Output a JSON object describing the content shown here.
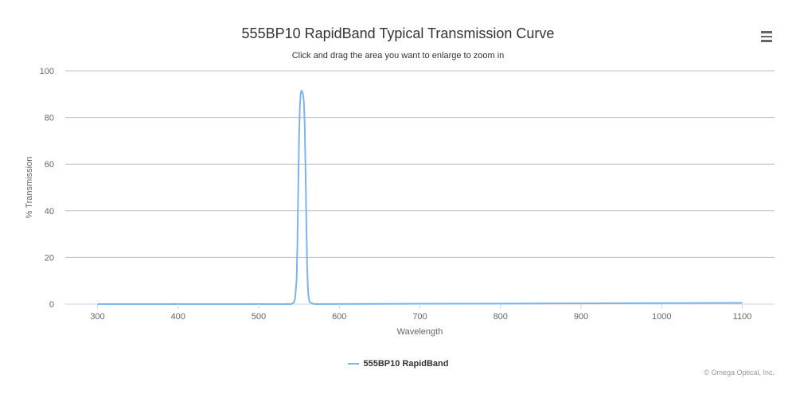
{
  "colors": {
    "series": "#7cb5ec",
    "grid": "#c0c0c0",
    "axis_line": "#ccd6eb",
    "text": "#333333",
    "muted": "#666666"
  },
  "menu": {
    "icon": "hamburger-menu-icon"
  },
  "credits": "© Omega Optical, Inc.",
  "chart_data": {
    "type": "line",
    "title": "555BP10 RapidBand Typical Transmission Curve",
    "subtitle": "Click and drag the area you want to enlarge to zoom in",
    "xlabel": "Wavelength",
    "ylabel": "% Transmission",
    "xlim": [
      260,
      1140
    ],
    "ylim": [
      0,
      100
    ],
    "xticks": [
      300,
      400,
      500,
      600,
      700,
      800,
      900,
      1000,
      1100
    ],
    "yticks": [
      0,
      20,
      40,
      60,
      80,
      100
    ],
    "grid": true,
    "legend": "bottom-center",
    "series": [
      {
        "name": "555BP10 RapidBand",
        "x": [
          300,
          540,
          543,
          545,
          547,
          548,
          549,
          550,
          551,
          552,
          553,
          554,
          555,
          556,
          557,
          558,
          559,
          560,
          561,
          562,
          563,
          565,
          567,
          570,
          880,
          1100
        ],
        "y": [
          0,
          0,
          0.5,
          2,
          10,
          25,
          48,
          70,
          84,
          90,
          91.5,
          91,
          90,
          87,
          78,
          60,
          38,
          18,
          7,
          3,
          1,
          0.5,
          0.2,
          0,
          0.3,
          0.5
        ]
      }
    ]
  }
}
